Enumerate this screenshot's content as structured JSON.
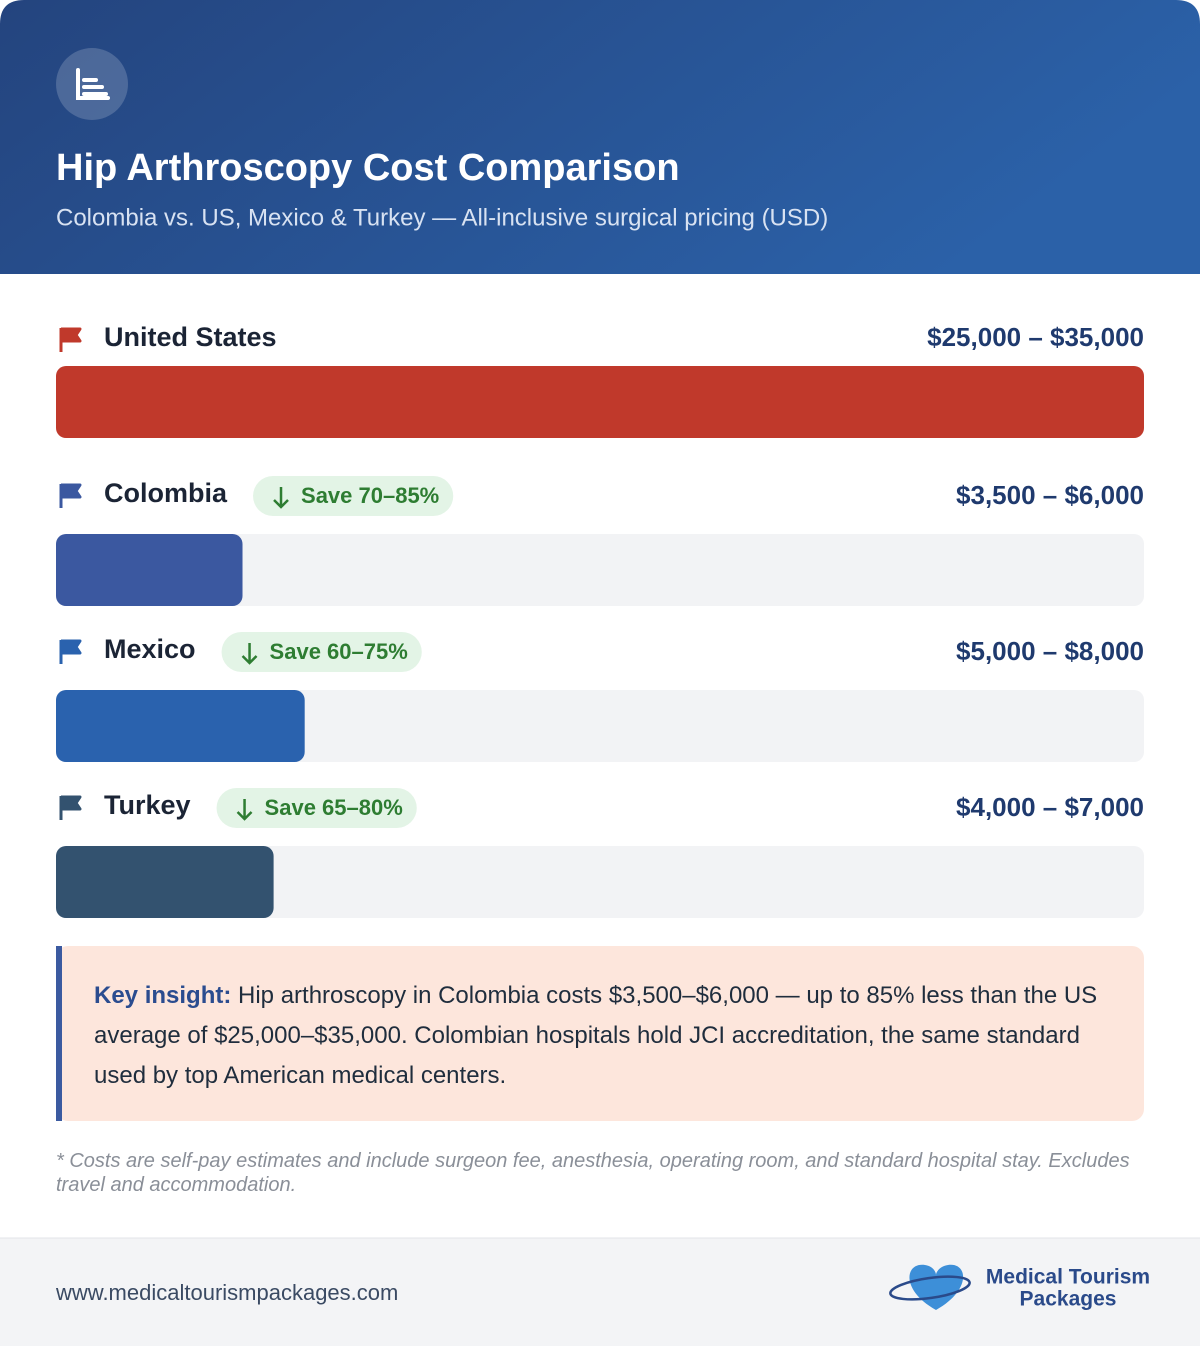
{
  "chart_data": {
    "type": "bar",
    "title": "Hip Arthroscopy Cost Comparison",
    "subtitle": "Colombia vs. US, Mexico & Turkey — All-inclusive surgical pricing (USD)",
    "categories": [
      "United States",
      "Colombia",
      "Mexico",
      "Turkey"
    ],
    "low": [
      25000,
      3500,
      5000,
      4000
    ],
    "high": [
      35000,
      6000,
      8000,
      7000
    ],
    "value_labels": [
      "$25,000 – $35,000",
      "$3,500 – $6,000",
      "$5,000 – $8,000",
      "$4,000 – $7,000"
    ],
    "savings": [
      null,
      "Save 70–85%",
      "Save 60–75%",
      "Save 65–80%"
    ],
    "colors": [
      "#c0392b",
      "#3b58a0",
      "#2a62ae",
      "#33526f"
    ],
    "xlim": [
      0,
      35000
    ]
  },
  "insight": {
    "label": "Key insight:",
    "text": "Hip arthroscopy in Colombia costs $3,500–$6,000 — up to 85% less than the US average of $25,000–$35,000. Colombian hospitals hold JCI accreditation, the same standard used by top American medical centers."
  },
  "footnote": "* Costs are self-pay estimates and include surgeon fee, anesthesia, operating room, and standard hospital stay. Excludes travel and accommodation.",
  "footer": {
    "url": "www.medicaltourismpackages.com",
    "logo_line1": "Medical Tourism",
    "logo_line2": "Packages"
  }
}
